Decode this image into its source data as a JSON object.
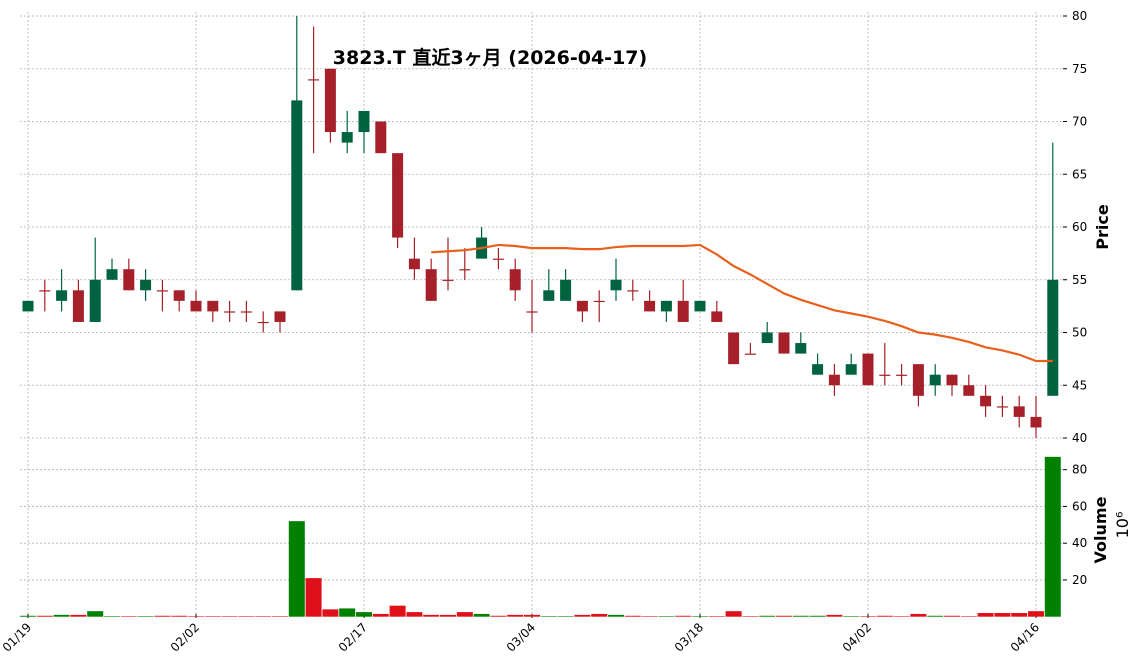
{
  "chart_data": {
    "type": "candlestick",
    "title": "3823.T 直近3ヶ月 (2026-04-17)",
    "categories": [
      "01/19",
      null,
      null,
      null,
      null,
      null,
      null,
      null,
      null,
      null,
      "02/02",
      null,
      null,
      null,
      null,
      null,
      null,
      null,
      null,
      null,
      "02/17",
      null,
      null,
      null,
      null,
      null,
      null,
      null,
      null,
      null,
      "03/04",
      null,
      null,
      null,
      null,
      null,
      null,
      null,
      null,
      null,
      "03/18",
      null,
      null,
      null,
      null,
      null,
      null,
      null,
      null,
      null,
      "04/02",
      null,
      null,
      null,
      null,
      null,
      null,
      null,
      null,
      null,
      "04/16",
      null
    ],
    "open": [
      52,
      54,
      53,
      54,
      51,
      55,
      56,
      54,
      54,
      54,
      53,
      53,
      52,
      52,
      51,
      52,
      54,
      74,
      75,
      68,
      69,
      70,
      67,
      57,
      56,
      55,
      56,
      57,
      57,
      56,
      52,
      53,
      53,
      53,
      53,
      54,
      54,
      53,
      52,
      53,
      52,
      52,
      50,
      48,
      49,
      50,
      48,
      46,
      46,
      46,
      48,
      46,
      46,
      47,
      45,
      46,
      45,
      44,
      43,
      43,
      42,
      44
    ],
    "high": [
      53,
      55,
      56,
      55,
      59,
      57,
      57,
      56,
      55,
      54,
      54,
      53,
      53,
      53,
      52,
      52,
      80,
      79,
      75,
      71,
      71,
      70,
      67,
      59,
      57,
      59,
      58,
      60,
      58,
      57,
      55,
      56,
      56,
      53,
      54,
      57,
      55,
      54,
      53,
      55,
      53,
      53,
      50,
      49,
      51,
      50,
      50,
      48,
      47,
      48,
      48,
      49,
      47,
      47,
      47,
      46,
      46,
      45,
      44,
      44,
      44,
      68
    ],
    "low": [
      52,
      52,
      52,
      51,
      51,
      55,
      54,
      53,
      52,
      52,
      52,
      51,
      51,
      51,
      50,
      50,
      54,
      67,
      68,
      67,
      67,
      67,
      58,
      55,
      53,
      54,
      55,
      57,
      56,
      53,
      50,
      53,
      53,
      51,
      51,
      53,
      53,
      52,
      51,
      51,
      52,
      51,
      47,
      48,
      49,
      48,
      48,
      46,
      44,
      46,
      45,
      45,
      45,
      43,
      44,
      44,
      44,
      42,
      42,
      41,
      40,
      44
    ],
    "close": [
      53,
      54,
      54,
      51,
      55,
      56,
      54,
      55,
      54,
      53,
      52,
      52,
      52,
      52,
      51,
      51,
      72,
      74,
      69,
      69,
      71,
      67,
      59,
      56,
      53,
      55,
      56,
      59,
      57,
      54,
      52,
      54,
      55,
      52,
      53,
      55,
      54,
      52,
      53,
      51,
      53,
      51,
      47,
      48,
      50,
      48,
      49,
      47,
      45,
      47,
      45,
      46,
      46,
      44,
      46,
      45,
      44,
      43,
      43,
      42,
      41,
      55
    ],
    "up_color": "#006340",
    "down_color": "#a52028",
    "ma": {
      "color": "#e8601c",
      "values": [
        null,
        null,
        null,
        null,
        null,
        null,
        null,
        null,
        null,
        null,
        null,
        null,
        null,
        null,
        null,
        null,
        null,
        null,
        null,
        null,
        null,
        null,
        null,
        null,
        57.6,
        57.7,
        57.8,
        58.0,
        58.3,
        58.2,
        58.0,
        58.0,
        58.0,
        57.9,
        57.9,
        58.1,
        58.2,
        58.2,
        58.2,
        58.2,
        58.3,
        57.4,
        56.3,
        55.5,
        54.6,
        53.7,
        53.1,
        52.6,
        52.1,
        51.8,
        51.5,
        51.1,
        50.6,
        50.0,
        49.8,
        49.5,
        49.1,
        48.6,
        48.3,
        47.9,
        47.3,
        47.3
      ]
    },
    "ylabel": "Price",
    "ylim": [
      40,
      80
    ],
    "yticks": [
      40,
      45,
      50,
      55,
      60,
      65,
      70,
      75,
      80
    ],
    "grid": true,
    "volume": {
      "ylabel": "Volume",
      "scale_label": "10⁶",
      "up_color": "#008000",
      "down_color": "#e0101a",
      "ylim": [
        0,
        88
      ],
      "yticks": [
        20,
        40,
        60,
        80
      ],
      "values": [
        0.5,
        0.5,
        1,
        1,
        3,
        0.3,
        0.3,
        0.3,
        0.5,
        0.5,
        0.3,
        0.3,
        0.3,
        0.3,
        0.3,
        0.3,
        52,
        21,
        4,
        4.5,
        2.5,
        1.5,
        6,
        2.5,
        1,
        1,
        2.5,
        1.5,
        0.5,
        1,
        1,
        0.3,
        0.3,
        1,
        1.5,
        1,
        0.5,
        0.3,
        0.3,
        0.5,
        0.3,
        0.3,
        3,
        0.3,
        0.5,
        0.5,
        0.5,
        0.5,
        1,
        0.3,
        0.3,
        0.5,
        0.3,
        1.5,
        0.5,
        0.5,
        0.3,
        2,
        2,
        2,
        3,
        87
      ]
    }
  }
}
